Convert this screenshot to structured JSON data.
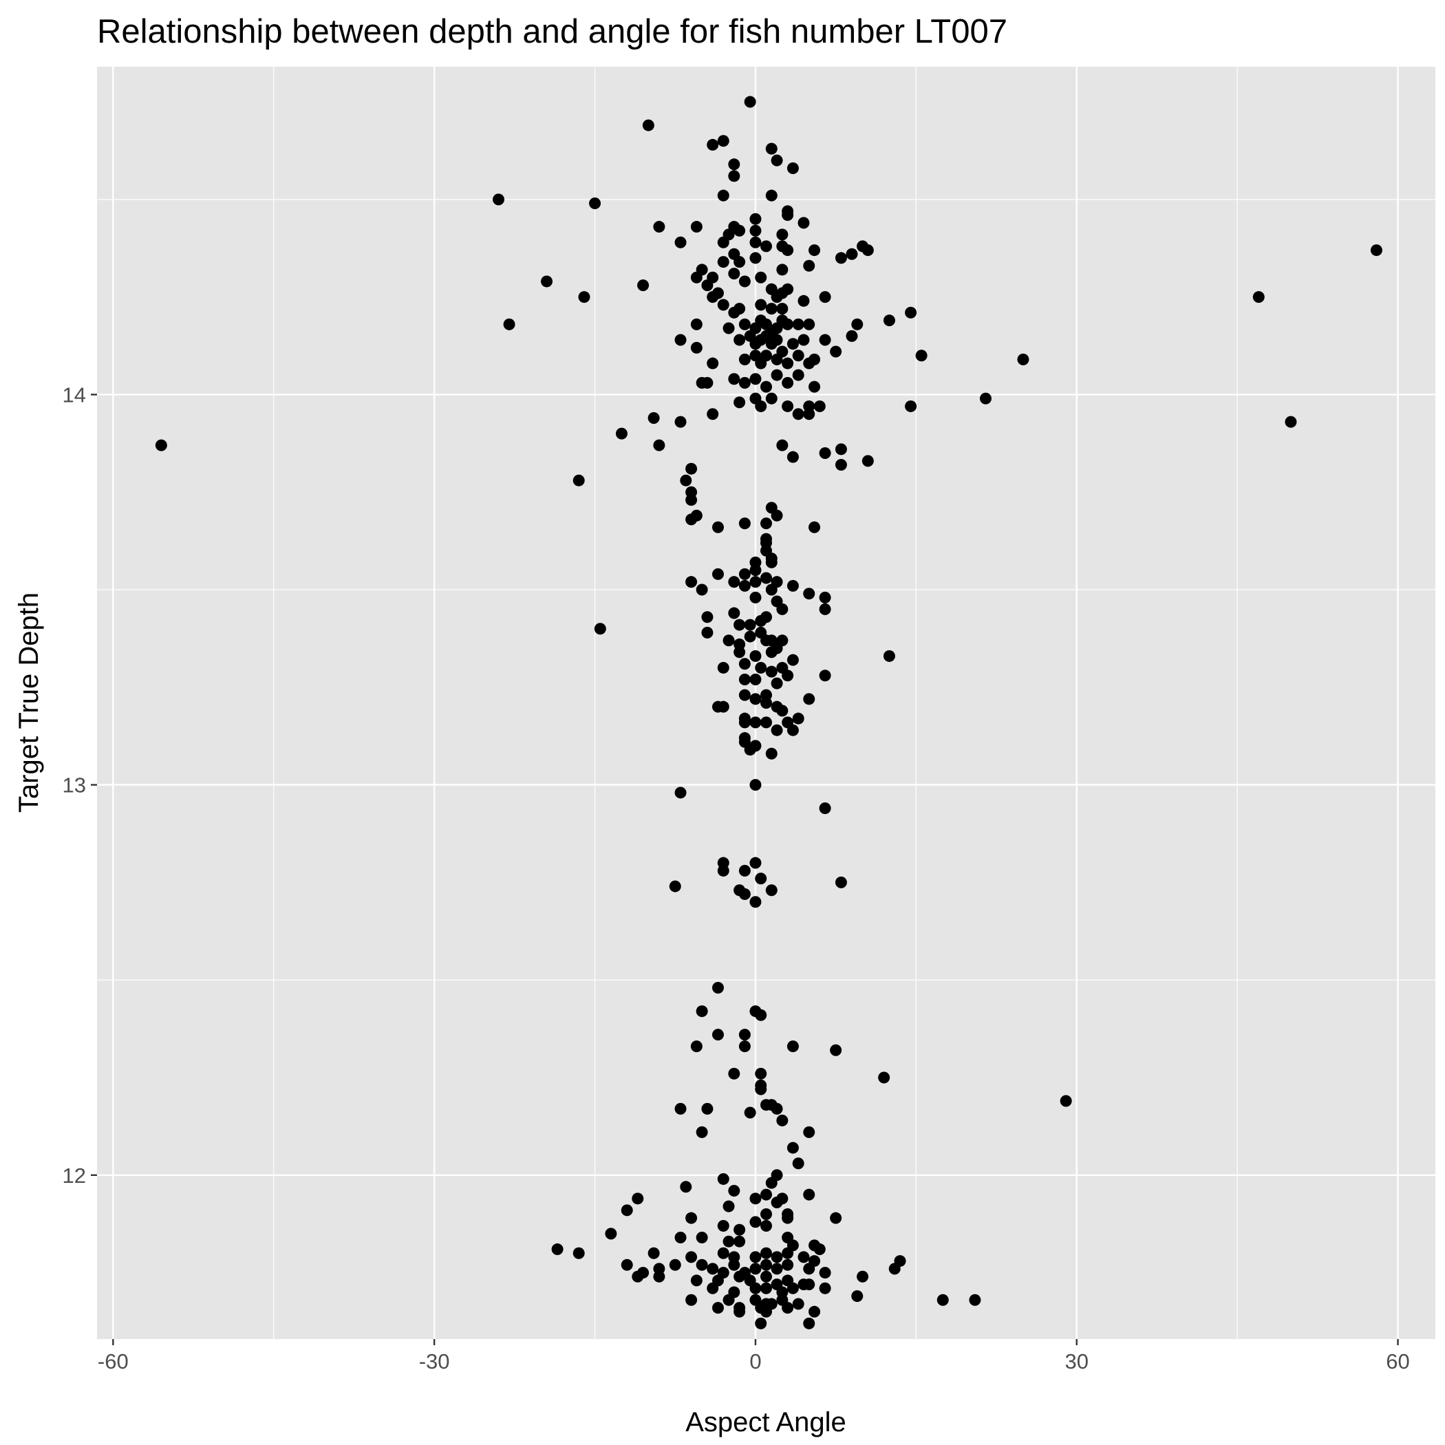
{
  "colors": {
    "panel_background": "#e5e5e5",
    "grid": "#ffffff",
    "points": "#000000",
    "tick_text": "#4d4d4d"
  },
  "chart_data": {
    "type": "scatter",
    "title": "Relationship between depth and angle for fish number LT007",
    "xlabel": "Aspect Angle",
    "ylabel": "Target True Depth",
    "xlim": [
      -61.5,
      63.5
    ],
    "ylim": [
      11.58,
      14.84
    ],
    "xticks": [
      -60,
      -30,
      0,
      30,
      60
    ],
    "xtick_labels": [
      "-60",
      "-30",
      "0",
      "30",
      "60"
    ],
    "yticks": [
      12,
      13,
      14
    ],
    "ytick_labels": [
      "12",
      "13",
      "14"
    ],
    "grid": true,
    "legend": "none",
    "points": [
      [
        -0.5,
        14.75
      ],
      [
        -10,
        14.69
      ],
      [
        -4,
        14.64
      ],
      [
        -3,
        14.65
      ],
      [
        1.5,
        14.63
      ],
      [
        -2,
        14.59
      ],
      [
        2,
        14.6
      ],
      [
        3.5,
        14.58
      ],
      [
        -2,
        14.56
      ],
      [
        1.5,
        14.51
      ],
      [
        3,
        14.47
      ],
      [
        -3,
        14.51
      ],
      [
        -24,
        14.5
      ],
      [
        -15,
        14.49
      ],
      [
        -9,
        14.43
      ],
      [
        -5.5,
        14.43
      ],
      [
        -2,
        14.43
      ],
      [
        0,
        14.45
      ],
      [
        0,
        14.42
      ],
      [
        3,
        14.46
      ],
      [
        4.5,
        14.44
      ],
      [
        -2.5,
        14.41
      ],
      [
        -1.5,
        14.42
      ],
      [
        2.5,
        14.41
      ],
      [
        -7,
        14.39
      ],
      [
        -3,
        14.39
      ],
      [
        0,
        14.39
      ],
      [
        1,
        14.38
      ],
      [
        2.5,
        14.38
      ],
      [
        3,
        14.37
      ],
      [
        5.5,
        14.37
      ],
      [
        8,
        14.35
      ],
      [
        9,
        14.36
      ],
      [
        10,
        14.38
      ],
      [
        10.5,
        14.37
      ],
      [
        58,
        14.37
      ],
      [
        -2,
        14.36
      ],
      [
        -1.5,
        14.34
      ],
      [
        0,
        14.35
      ],
      [
        -3,
        14.34
      ],
      [
        -5,
        14.32
      ],
      [
        -4,
        14.3
      ],
      [
        -5.5,
        14.3
      ],
      [
        -2,
        14.31
      ],
      [
        -1,
        14.29
      ],
      [
        0.5,
        14.3
      ],
      [
        2.5,
        14.32
      ],
      [
        5,
        14.33
      ],
      [
        -19.5,
        14.29
      ],
      [
        -10.5,
        14.28
      ],
      [
        -16,
        14.25
      ],
      [
        -4.5,
        14.28
      ],
      [
        -3.5,
        14.26
      ],
      [
        -4,
        14.25
      ],
      [
        1.5,
        14.27
      ],
      [
        3,
        14.27
      ],
      [
        2.5,
        14.26
      ],
      [
        6.5,
        14.25
      ],
      [
        47,
        14.25
      ],
      [
        -3,
        14.23
      ],
      [
        0.5,
        14.23
      ],
      [
        1.5,
        14.22
      ],
      [
        2,
        14.25
      ],
      [
        2.5,
        14.22
      ],
      [
        -2,
        14.21
      ],
      [
        -1.5,
        14.22
      ],
      [
        4.5,
        14.24
      ],
      [
        -23,
        14.18
      ],
      [
        -5.5,
        14.18
      ],
      [
        -2.5,
        14.17
      ],
      [
        -1,
        14.18
      ],
      [
        0,
        14.17
      ],
      [
        0.5,
        14.19
      ],
      [
        1,
        14.18
      ],
      [
        1.5,
        14.16
      ],
      [
        2,
        14.17
      ],
      [
        2.5,
        14.19
      ],
      [
        3,
        14.18
      ],
      [
        4,
        14.18
      ],
      [
        5,
        14.18
      ],
      [
        9.5,
        14.18
      ],
      [
        12.5,
        14.19
      ],
      [
        14.5,
        14.21
      ],
      [
        -7,
        14.14
      ],
      [
        -5.5,
        14.12
      ],
      [
        -1.5,
        14.14
      ],
      [
        -0.5,
        14.15
      ],
      [
        0,
        14.13
      ],
      [
        0.5,
        14.14
      ],
      [
        1,
        14.15
      ],
      [
        1.5,
        14.13
      ],
      [
        2,
        14.14
      ],
      [
        3.5,
        14.13
      ],
      [
        4.5,
        14.14
      ],
      [
        6.5,
        14.14
      ],
      [
        9,
        14.15
      ],
      [
        -4,
        14.08
      ],
      [
        -1,
        14.09
      ],
      [
        0,
        14.1
      ],
      [
        0.5,
        14.08
      ],
      [
        1,
        14.1
      ],
      [
        2,
        14.09
      ],
      [
        2.5,
        14.11
      ],
      [
        3,
        14.08
      ],
      [
        4,
        14.1
      ],
      [
        5,
        14.08
      ],
      [
        5.5,
        14.09
      ],
      [
        7.5,
        14.11
      ],
      [
        15.5,
        14.1
      ],
      [
        25,
        14.09
      ],
      [
        -5,
        14.03
      ],
      [
        -4.5,
        14.03
      ],
      [
        -2,
        14.04
      ],
      [
        -1,
        14.03
      ],
      [
        0,
        14.04
      ],
      [
        1,
        14.02
      ],
      [
        2,
        14.05
      ],
      [
        3,
        14.03
      ],
      [
        4,
        14.05
      ],
      [
        5.5,
        14.02
      ],
      [
        -1.5,
        13.98
      ],
      [
        0,
        13.99
      ],
      [
        0.5,
        13.97
      ],
      [
        1.5,
        13.99
      ],
      [
        3,
        13.97
      ],
      [
        4,
        13.95
      ],
      [
        5,
        13.97
      ],
      [
        5,
        13.95
      ],
      [
        6,
        13.97
      ],
      [
        14.5,
        13.97
      ],
      [
        21.5,
        13.99
      ],
      [
        -4,
        13.95
      ],
      [
        -9.5,
        13.94
      ],
      [
        -7,
        13.93
      ],
      [
        -12.5,
        13.9
      ],
      [
        -9,
        13.87
      ],
      [
        50,
        13.93
      ],
      [
        -55.5,
        13.87
      ],
      [
        2.5,
        13.87
      ],
      [
        3.5,
        13.84
      ],
      [
        6.5,
        13.85
      ],
      [
        8,
        13.86
      ],
      [
        8,
        13.82
      ],
      [
        10.5,
        13.83
      ],
      [
        -16.5,
        13.78
      ],
      [
        -6,
        13.81
      ],
      [
        -6.5,
        13.78
      ],
      [
        -6,
        13.75
      ],
      [
        -6,
        13.73
      ],
      [
        -6,
        13.68
      ],
      [
        -5.5,
        13.69
      ],
      [
        1.5,
        13.71
      ],
      [
        2,
        13.69
      ],
      [
        1,
        13.67
      ],
      [
        -1,
        13.67
      ],
      [
        5.5,
        13.66
      ],
      [
        -3.5,
        13.66
      ],
      [
        1,
        13.63
      ],
      [
        1,
        13.62
      ],
      [
        1,
        13.6
      ],
      [
        1.5,
        13.58
      ],
      [
        1.5,
        13.57
      ],
      [
        0,
        13.57
      ],
      [
        0,
        13.55
      ],
      [
        -1,
        13.54
      ],
      [
        -3.5,
        13.54
      ],
      [
        -6,
        13.52
      ],
      [
        -5,
        13.5
      ],
      [
        -2,
        13.52
      ],
      [
        -1,
        13.51
      ],
      [
        0,
        13.52
      ],
      [
        1,
        13.53
      ],
      [
        1.5,
        13.5
      ],
      [
        2,
        13.52
      ],
      [
        3.5,
        13.51
      ],
      [
        5,
        13.49
      ],
      [
        6.5,
        13.48
      ],
      [
        6.5,
        13.45
      ],
      [
        2,
        13.47
      ],
      [
        2.5,
        13.45
      ],
      [
        0,
        13.48
      ],
      [
        -14.5,
        13.4
      ],
      [
        -4.5,
        13.43
      ],
      [
        -4.5,
        13.39
      ],
      [
        -2,
        13.44
      ],
      [
        -1.5,
        13.41
      ],
      [
        -0.5,
        13.41
      ],
      [
        0.5,
        13.42
      ],
      [
        1,
        13.43
      ],
      [
        -2.5,
        13.37
      ],
      [
        -1.5,
        13.36
      ],
      [
        -0.5,
        13.38
      ],
      [
        0.5,
        13.39
      ],
      [
        1,
        13.37
      ],
      [
        1.5,
        13.37
      ],
      [
        2,
        13.35
      ],
      [
        2.5,
        13.37
      ],
      [
        -1.5,
        13.34
      ],
      [
        0,
        13.33
      ],
      [
        1.5,
        13.34
      ],
      [
        3.5,
        13.32
      ],
      [
        12.5,
        13.33
      ],
      [
        -3,
        13.3
      ],
      [
        -1,
        13.31
      ],
      [
        0.5,
        13.3
      ],
      [
        1.5,
        13.29
      ],
      [
        2.5,
        13.3
      ],
      [
        -1,
        13.27
      ],
      [
        0,
        13.27
      ],
      [
        2,
        13.26
      ],
      [
        3,
        13.28
      ],
      [
        6.5,
        13.28
      ],
      [
        -1,
        13.23
      ],
      [
        0,
        13.22
      ],
      [
        1,
        13.23
      ],
      [
        5,
        13.22
      ],
      [
        -3,
        13.2
      ],
      [
        -3.5,
        13.2
      ],
      [
        1,
        13.21
      ],
      [
        2,
        13.2
      ],
      [
        2.5,
        13.19
      ],
      [
        -1,
        13.17
      ],
      [
        -1,
        13.16
      ],
      [
        0,
        13.16
      ],
      [
        1,
        13.16
      ],
      [
        3,
        13.16
      ],
      [
        3.5,
        13.14
      ],
      [
        4,
        13.17
      ],
      [
        2,
        13.14
      ],
      [
        -1,
        13.12
      ],
      [
        -1,
        13.11
      ],
      [
        -0.5,
        13.09
      ],
      [
        0,
        13.1
      ],
      [
        1.5,
        13.08
      ],
      [
        0,
        13.0
      ],
      [
        -7,
        12.98
      ],
      [
        6.5,
        12.94
      ],
      [
        -3,
        12.8
      ],
      [
        -3,
        12.78
      ],
      [
        0,
        12.8
      ],
      [
        -1,
        12.78
      ],
      [
        0.5,
        12.76
      ],
      [
        8,
        12.75
      ],
      [
        -7.5,
        12.74
      ],
      [
        -1.5,
        12.73
      ],
      [
        1.5,
        12.73
      ],
      [
        -1,
        12.72
      ],
      [
        0,
        12.7
      ],
      [
        -3.5,
        12.48
      ],
      [
        -5,
        12.42
      ],
      [
        0,
        12.42
      ],
      [
        0.5,
        12.41
      ],
      [
        -3.5,
        12.36
      ],
      [
        -1,
        12.36
      ],
      [
        -5.5,
        12.33
      ],
      [
        -1,
        12.33
      ],
      [
        3.5,
        12.33
      ],
      [
        7.5,
        12.32
      ],
      [
        -2,
        12.26
      ],
      [
        0.5,
        12.26
      ],
      [
        12,
        12.25
      ],
      [
        0.5,
        12.23
      ],
      [
        0.5,
        12.22
      ],
      [
        29,
        12.19
      ],
      [
        -7,
        12.17
      ],
      [
        -4.5,
        12.17
      ],
      [
        -0.5,
        12.16
      ],
      [
        1,
        12.18
      ],
      [
        1.5,
        12.18
      ],
      [
        2,
        12.17
      ],
      [
        2.5,
        12.14
      ],
      [
        -5,
        12.11
      ],
      [
        5,
        12.11
      ],
      [
        3.5,
        12.07
      ],
      [
        4,
        12.03
      ],
      [
        2,
        12.0
      ],
      [
        -3,
        11.99
      ],
      [
        1.5,
        11.98
      ],
      [
        -6.5,
        11.97
      ],
      [
        -2,
        11.96
      ],
      [
        0,
        11.94
      ],
      [
        1,
        11.95
      ],
      [
        2,
        11.93
      ],
      [
        2.5,
        11.94
      ],
      [
        5,
        11.95
      ],
      [
        -11,
        11.94
      ],
      [
        -12,
        11.91
      ],
      [
        -2.5,
        11.92
      ],
      [
        1,
        11.9
      ],
      [
        3,
        11.9
      ],
      [
        -6,
        11.89
      ],
      [
        -3,
        11.87
      ],
      [
        -1.5,
        11.86
      ],
      [
        0,
        11.88
      ],
      [
        1,
        11.87
      ],
      [
        3,
        11.89
      ],
      [
        7.5,
        11.89
      ],
      [
        -13.5,
        11.85
      ],
      [
        -7,
        11.84
      ],
      [
        -5,
        11.84
      ],
      [
        3,
        11.84
      ],
      [
        -2.5,
        11.83
      ],
      [
        -1.5,
        11.83
      ],
      [
        3.5,
        11.82
      ],
      [
        5.5,
        11.82
      ],
      [
        6,
        11.81
      ],
      [
        -18.5,
        11.81
      ],
      [
        -16.5,
        11.8
      ],
      [
        -9.5,
        11.8
      ],
      [
        -6,
        11.79
      ],
      [
        -3,
        11.8
      ],
      [
        -2,
        11.79
      ],
      [
        0,
        11.79
      ],
      [
        1,
        11.8
      ],
      [
        2,
        11.79
      ],
      [
        3,
        11.8
      ],
      [
        4.5,
        11.79
      ],
      [
        5.5,
        11.78
      ],
      [
        13.5,
        11.78
      ],
      [
        -12,
        11.77
      ],
      [
        -10.5,
        11.75
      ],
      [
        -9,
        11.76
      ],
      [
        -7.5,
        11.77
      ],
      [
        -5,
        11.77
      ],
      [
        -4,
        11.76
      ],
      [
        -3,
        11.75
      ],
      [
        -2,
        11.77
      ],
      [
        -1,
        11.75
      ],
      [
        0,
        11.76
      ],
      [
        1,
        11.77
      ],
      [
        2,
        11.76
      ],
      [
        3,
        11.77
      ],
      [
        5,
        11.76
      ],
      [
        6.5,
        11.75
      ],
      [
        13,
        11.76
      ],
      [
        -11,
        11.74
      ],
      [
        -9,
        11.74
      ],
      [
        -5.5,
        11.73
      ],
      [
        -3.5,
        11.73
      ],
      [
        -1.5,
        11.74
      ],
      [
        -0.5,
        11.73
      ],
      [
        1,
        11.74
      ],
      [
        2,
        11.72
      ],
      [
        3,
        11.73
      ],
      [
        5,
        11.72
      ],
      [
        10,
        11.74
      ],
      [
        -4,
        11.71
      ],
      [
        -2,
        11.7
      ],
      [
        0,
        11.71
      ],
      [
        1,
        11.71
      ],
      [
        2.5,
        11.7
      ],
      [
        3.5,
        11.71
      ],
      [
        4.5,
        11.72
      ],
      [
        6.5,
        11.71
      ],
      [
        9.5,
        11.69
      ],
      [
        -6,
        11.68
      ],
      [
        -2.5,
        11.68
      ],
      [
        0,
        11.68
      ],
      [
        1,
        11.67
      ],
      [
        2.5,
        11.68
      ],
      [
        4,
        11.67
      ],
      [
        17.5,
        11.68
      ],
      [
        20.5,
        11.68
      ],
      [
        -3.5,
        11.66
      ],
      [
        -1.5,
        11.66
      ],
      [
        0.5,
        11.66
      ],
      [
        1.5,
        11.67
      ],
      [
        3,
        11.66
      ],
      [
        -1.5,
        11.65
      ],
      [
        1,
        11.65
      ],
      [
        5.5,
        11.65
      ],
      [
        5,
        11.62
      ],
      [
        0.5,
        11.62
      ]
    ]
  }
}
